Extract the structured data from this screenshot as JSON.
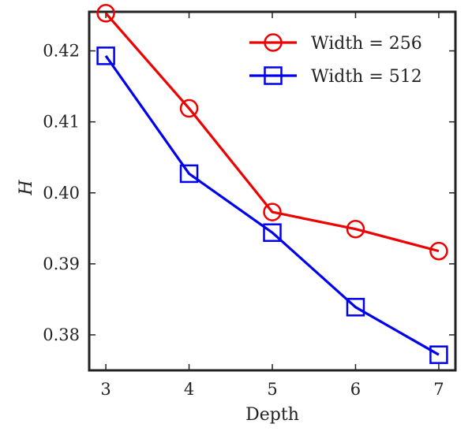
{
  "chart_data": {
    "type": "line",
    "title": "",
    "xlabel": "Depth",
    "ylabel": "H",
    "x": [
      3,
      4,
      5,
      6,
      7
    ],
    "xticks": [
      3,
      4,
      5,
      6,
      7
    ],
    "yticks": [
      0.38,
      0.39,
      0.4,
      0.41,
      0.42
    ],
    "ytick_labels": [
      "0.38",
      "0.39",
      "0.40",
      "0.41",
      "0.42"
    ],
    "xlim": [
      2.8,
      7.2
    ],
    "ylim": [
      0.375,
      0.4255
    ],
    "grid": false,
    "legend_position": "top-right",
    "series": [
      {
        "name": "Width = 256",
        "color": "#ee0000",
        "marker": "circle",
        "values": [
          0.4253,
          0.4119,
          0.3973,
          0.3949,
          0.3918
        ]
      },
      {
        "name": "Width = 512",
        "color": "#0000ee",
        "marker": "square",
        "values": [
          0.4193,
          0.4027,
          0.3944,
          0.3839,
          0.3772
        ]
      }
    ]
  }
}
